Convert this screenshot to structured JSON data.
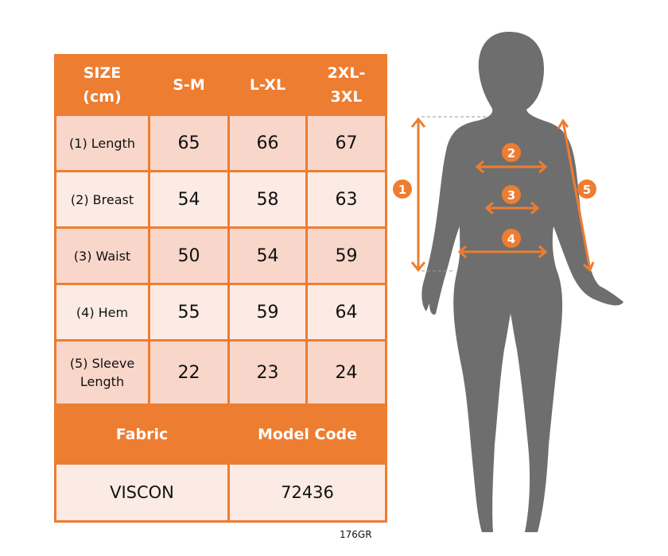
{
  "table": {
    "headers": [
      "SIZE (cm)",
      "S-M",
      "L-XL",
      "2XL-3XL"
    ],
    "rows": [
      {
        "label": "(1) Length",
        "values": [
          "65",
          "66",
          "67"
        ]
      },
      {
        "label": "(2) Breast",
        "values": [
          "54",
          "58",
          "63"
        ]
      },
      {
        "label": "(3) Waist",
        "values": [
          "50",
          "54",
          "59"
        ]
      },
      {
        "label": "(4) Hem",
        "values": [
          "55",
          "59",
          "64"
        ]
      },
      {
        "label": "(5) Sleeve Length",
        "values": [
          "22",
          "23",
          "24"
        ]
      }
    ],
    "footer_headers": [
      "Fabric",
      "Model Code"
    ],
    "footer_values": [
      "VISCON",
      "72436"
    ]
  },
  "product_code": "176GR",
  "figure": {
    "markers": [
      "1",
      "2",
      "3",
      "4",
      "5"
    ]
  },
  "colors": {
    "accent": "#ED7D31",
    "silhouette": "#6E6E6E",
    "row_dark": "#F8D6CA",
    "row_light": "#FCEBE4"
  }
}
